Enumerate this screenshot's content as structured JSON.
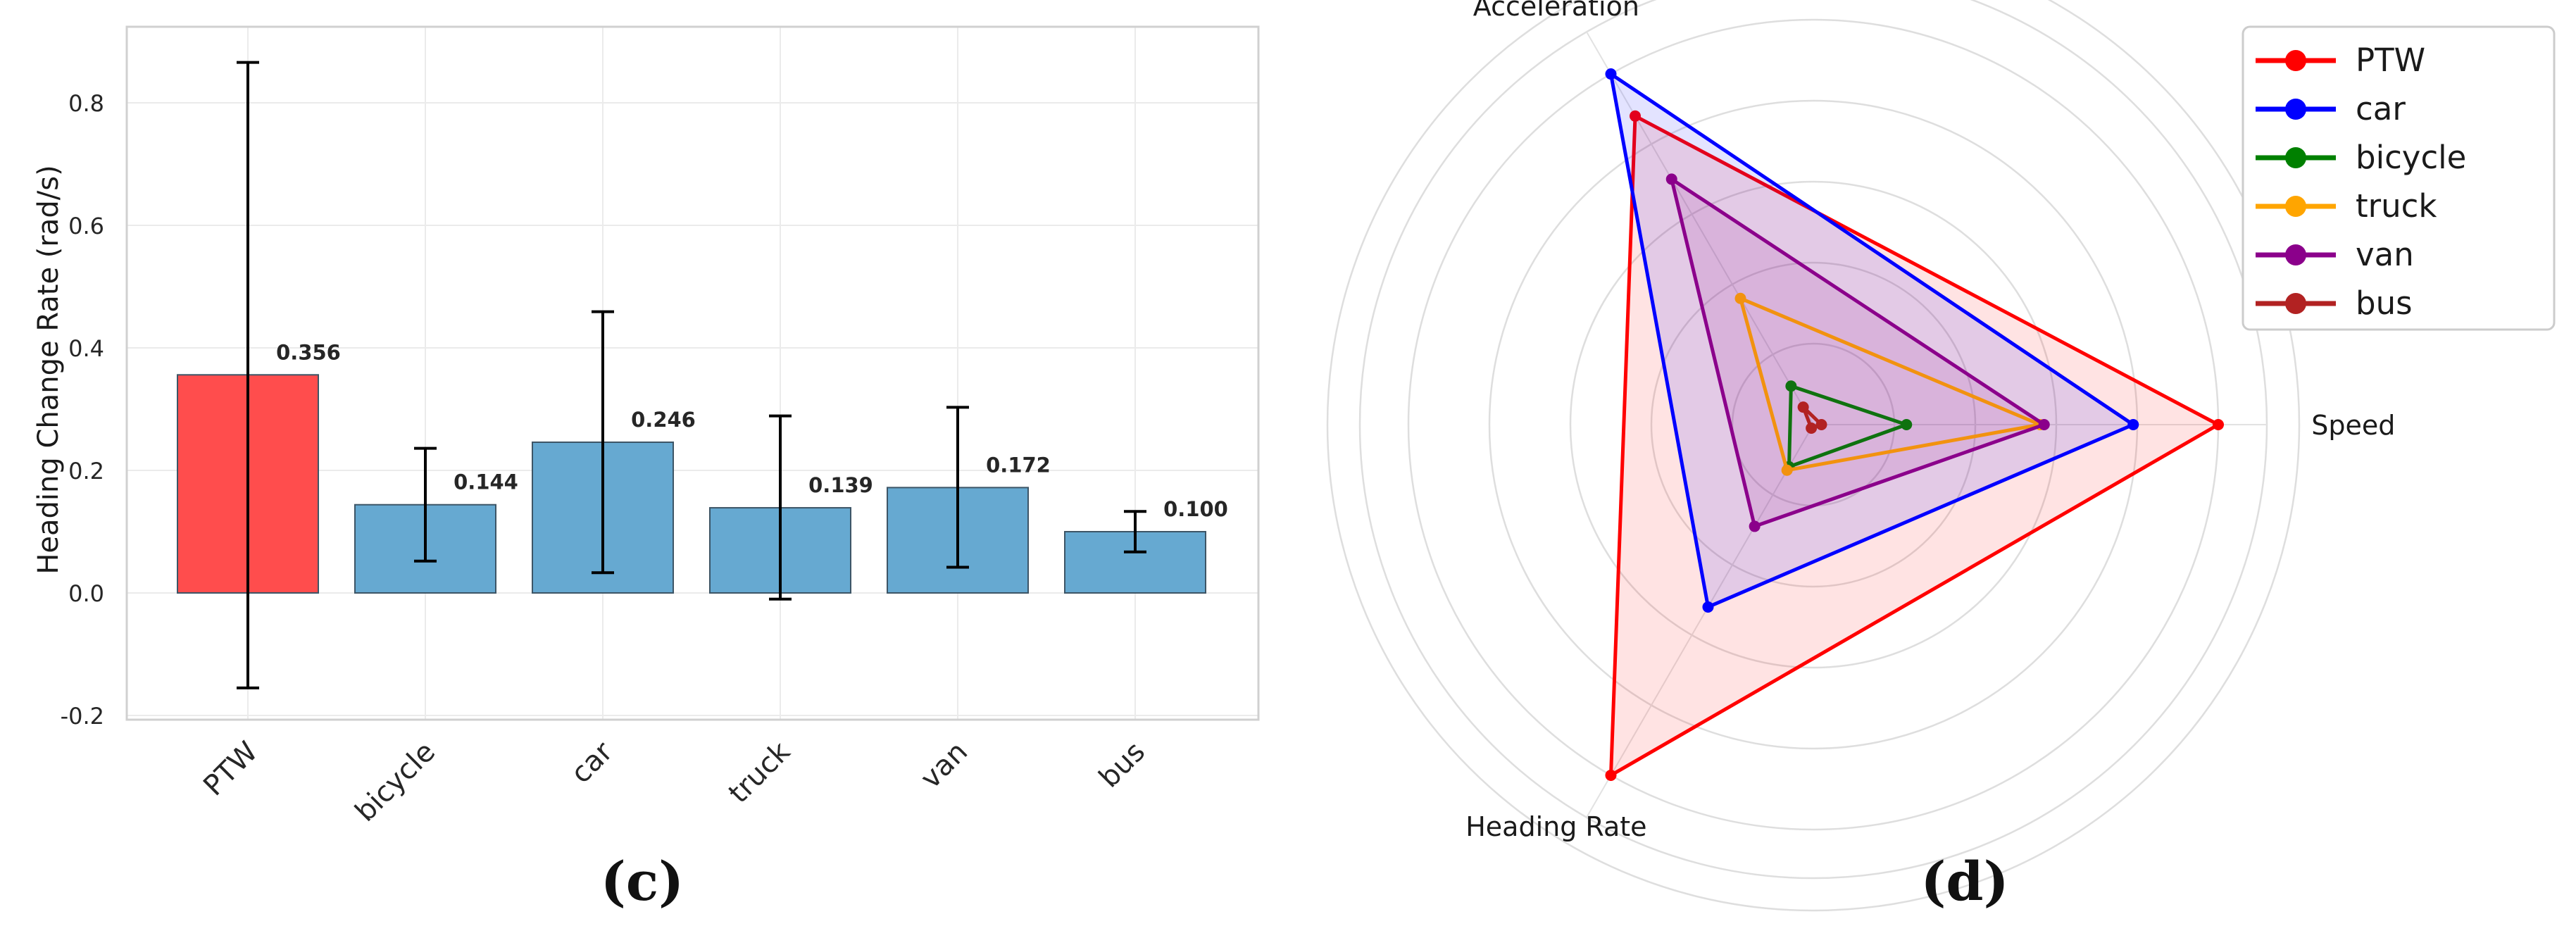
{
  "chart_data": [
    {
      "type": "bar",
      "panel_label": "(c)",
      "title": "",
      "xlabel": "",
      "ylabel": "Heading Change Rate  (rad/s)",
      "ylim": [
        -0.21,
        0.92
      ],
      "yticks": [
        -0.2,
        0.0,
        0.2,
        0.4,
        0.6,
        0.8
      ],
      "ytick_labels": [
        "-0.2",
        "0.0",
        "0.2",
        "0.4",
        "0.6",
        "0.8"
      ],
      "grid": true,
      "categories": [
        "PTW",
        "bicycle",
        "car",
        "truck",
        "van",
        "bus"
      ],
      "values": [
        0.356,
        0.144,
        0.246,
        0.139,
        0.172,
        0.1
      ],
      "value_labels": [
        "0.356",
        "0.144",
        "0.246",
        "0.139",
        "0.172",
        "0.100"
      ],
      "error_low": [
        -0.155,
        0.052,
        0.033,
        -0.01,
        0.042,
        0.067
      ],
      "error_high": [
        0.866,
        0.236,
        0.459,
        0.289,
        0.303,
        0.133
      ],
      "bar_colors": [
        "#ff4d4d",
        "#66a9d1",
        "#66a9d1",
        "#66a9d1",
        "#66a9d1",
        "#66a9d1"
      ]
    },
    {
      "type": "radar",
      "panel_label": "(d)",
      "title": "",
      "axes": [
        "Speed",
        "Acceleration",
        "Heading Rate"
      ],
      "rmax": 1.0,
      "legend_position": "top-right",
      "grid": true,
      "series": [
        {
          "name": "PTW",
          "color": "#ff0000",
          "fill": true,
          "values": [
            1.0,
            0.88,
            1.0
          ]
        },
        {
          "name": "car",
          "color": "#0000ff",
          "fill": true,
          "values": [
            0.79,
            1.0,
            0.52
          ]
        },
        {
          "name": "bicycle",
          "color": "#008000",
          "fill": false,
          "values": [
            0.23,
            0.11,
            0.12
          ]
        },
        {
          "name": "truck",
          "color": "#ffa500",
          "fill": false,
          "values": [
            0.56,
            0.36,
            0.13
          ]
        },
        {
          "name": "van",
          "color": "#8b008b",
          "fill": true,
          "values": [
            0.57,
            0.7,
            0.29
          ]
        },
        {
          "name": "bus",
          "color": "#b22222",
          "fill": false,
          "values": [
            0.02,
            0.05,
            0.01
          ]
        }
      ]
    }
  ]
}
